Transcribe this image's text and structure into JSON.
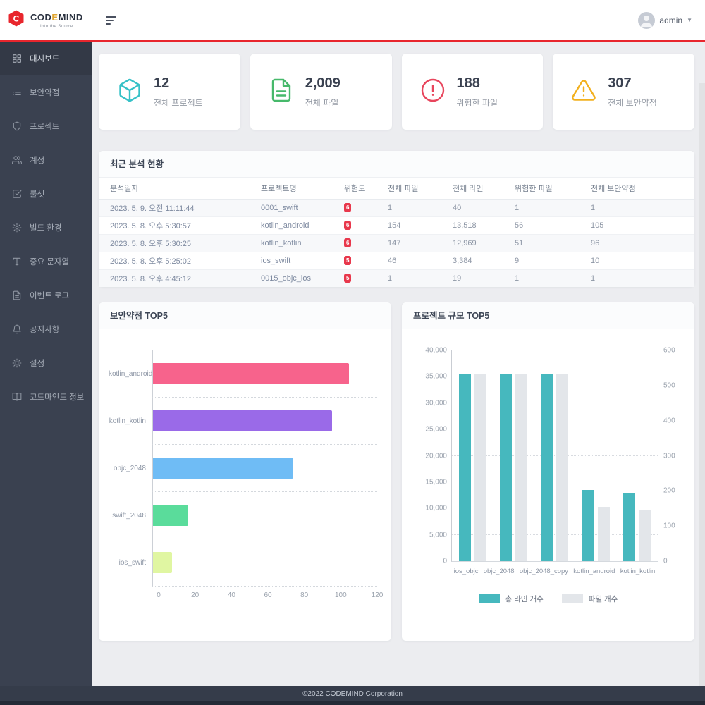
{
  "brand": {
    "name_pre": "COD",
    "name_e": "E",
    "name_post": "MIND",
    "tagline": "Into the Source",
    "accent_color": "#e8262d"
  },
  "topbar": {
    "user_label": "admin"
  },
  "sidebar": {
    "bg_color": "#3a4150",
    "items": [
      {
        "label": "대시보드",
        "icon": "dashboard",
        "active": true
      },
      {
        "label": "보안약점",
        "icon": "list",
        "active": false
      },
      {
        "label": "프로젝트",
        "icon": "shield",
        "active": false
      },
      {
        "label": "계정",
        "icon": "users",
        "active": false
      },
      {
        "label": "룰셋",
        "icon": "check-square",
        "active": false
      },
      {
        "label": "빌드 환경",
        "icon": "cog",
        "active": false
      },
      {
        "label": "중요 문자열",
        "icon": "type",
        "active": false
      },
      {
        "label": "이벤트 로그",
        "icon": "file-text",
        "active": false
      },
      {
        "label": "공지사항",
        "icon": "bell",
        "active": false
      },
      {
        "label": "설정",
        "icon": "gear",
        "active": false
      },
      {
        "label": "코드마인드 정보",
        "icon": "book",
        "active": false
      }
    ]
  },
  "stats": [
    {
      "value": "12",
      "label": "전체 프로젝트",
      "icon": "cube",
      "color": "#35c1c7"
    },
    {
      "value": "2,009",
      "label": "전체 파일",
      "icon": "file-text",
      "color": "#47b96b"
    },
    {
      "value": "188",
      "label": "위험한 파일",
      "icon": "alert-circle",
      "color": "#e8455c"
    },
    {
      "value": "307",
      "label": "전체 보안약점",
      "icon": "alert-triangle",
      "color": "#f2b01e"
    }
  ],
  "recent_analysis": {
    "title": "최근 분석 현황",
    "columns": [
      "분석일자",
      "프로젝트명",
      "위험도",
      "전체 파일",
      "전체 라인",
      "위험한 파일",
      "전체 보안약점"
    ],
    "badge_color": "#e8384c",
    "rows": [
      {
        "date": "2023. 5. 9. 오전 11:11:44",
        "project": "0001_swift",
        "risk": "6",
        "files": "1",
        "lines": "40",
        "risky_files": "1",
        "weaknesses": "1"
      },
      {
        "date": "2023. 5. 8. 오후 5:30:57",
        "project": "kotlin_android",
        "risk": "6",
        "files": "154",
        "lines": "13,518",
        "risky_files": "56",
        "weaknesses": "105"
      },
      {
        "date": "2023. 5. 8. 오후 5:30:25",
        "project": "kotlin_kotlin",
        "risk": "6",
        "files": "147",
        "lines": "12,969",
        "risky_files": "51",
        "weaknesses": "96"
      },
      {
        "date": "2023. 5. 8. 오후 5:25:02",
        "project": "ios_swift",
        "risk": "5",
        "files": "46",
        "lines": "3,384",
        "risky_files": "9",
        "weaknesses": "10"
      },
      {
        "date": "2023. 5. 8. 오후 4:45:12",
        "project": "0015_objc_ios",
        "risk": "5",
        "files": "1",
        "lines": "19",
        "risky_files": "1",
        "weaknesses": "1"
      }
    ]
  },
  "chart_data": [
    {
      "type": "bar",
      "orientation": "horizontal",
      "title": "보안약점 TOP5",
      "categories": [
        "kotlin_android",
        "kotlin_kotlin",
        "objc_2048",
        "swift_2048",
        "ios_swift"
      ],
      "values": [
        105,
        96,
        75,
        19,
        10
      ],
      "bar_colors": [
        "#f7638c",
        "#9a6ae8",
        "#6fbcf5",
        "#5adc9b",
        "#e0f6a2"
      ],
      "xlim": [
        0,
        120
      ],
      "xticks": [
        0,
        20,
        40,
        60,
        80,
        100,
        120
      ],
      "grid": "dotted-row-separators",
      "xlabel": "",
      "ylabel": ""
    },
    {
      "type": "bar",
      "orientation": "vertical",
      "title": "프로젝트 규모 TOP5",
      "categories": [
        "ios_objc",
        "objc_2048",
        "objc_2048_copy",
        "kotlin_android",
        "kotlin_kotlin"
      ],
      "series": [
        {
          "name": "총 라인 개수",
          "axis": "left",
          "color": "#46b8be",
          "values": [
            35600,
            35600,
            35600,
            13518,
            12969
          ]
        },
        {
          "name": "파일 개수",
          "axis": "right",
          "color": "#e3e6ea",
          "values": [
            531,
            531,
            531,
            154,
            147
          ]
        }
      ],
      "left_axis": {
        "max": 40000,
        "step": 5000,
        "tick_labels": [
          "0",
          "5,000",
          "10,000",
          "15,000",
          "20,000",
          "25,000",
          "30,000",
          "35,000",
          "40,000"
        ]
      },
      "right_axis": {
        "max": 600,
        "step": 100,
        "tick_labels": [
          "0",
          "100",
          "200",
          "300",
          "400",
          "500",
          "600"
        ]
      },
      "grid": "dotted-horizontal",
      "legend_position": "bottom"
    }
  ],
  "footer": {
    "copyright": "©2022 CODEMIND Corporation"
  }
}
